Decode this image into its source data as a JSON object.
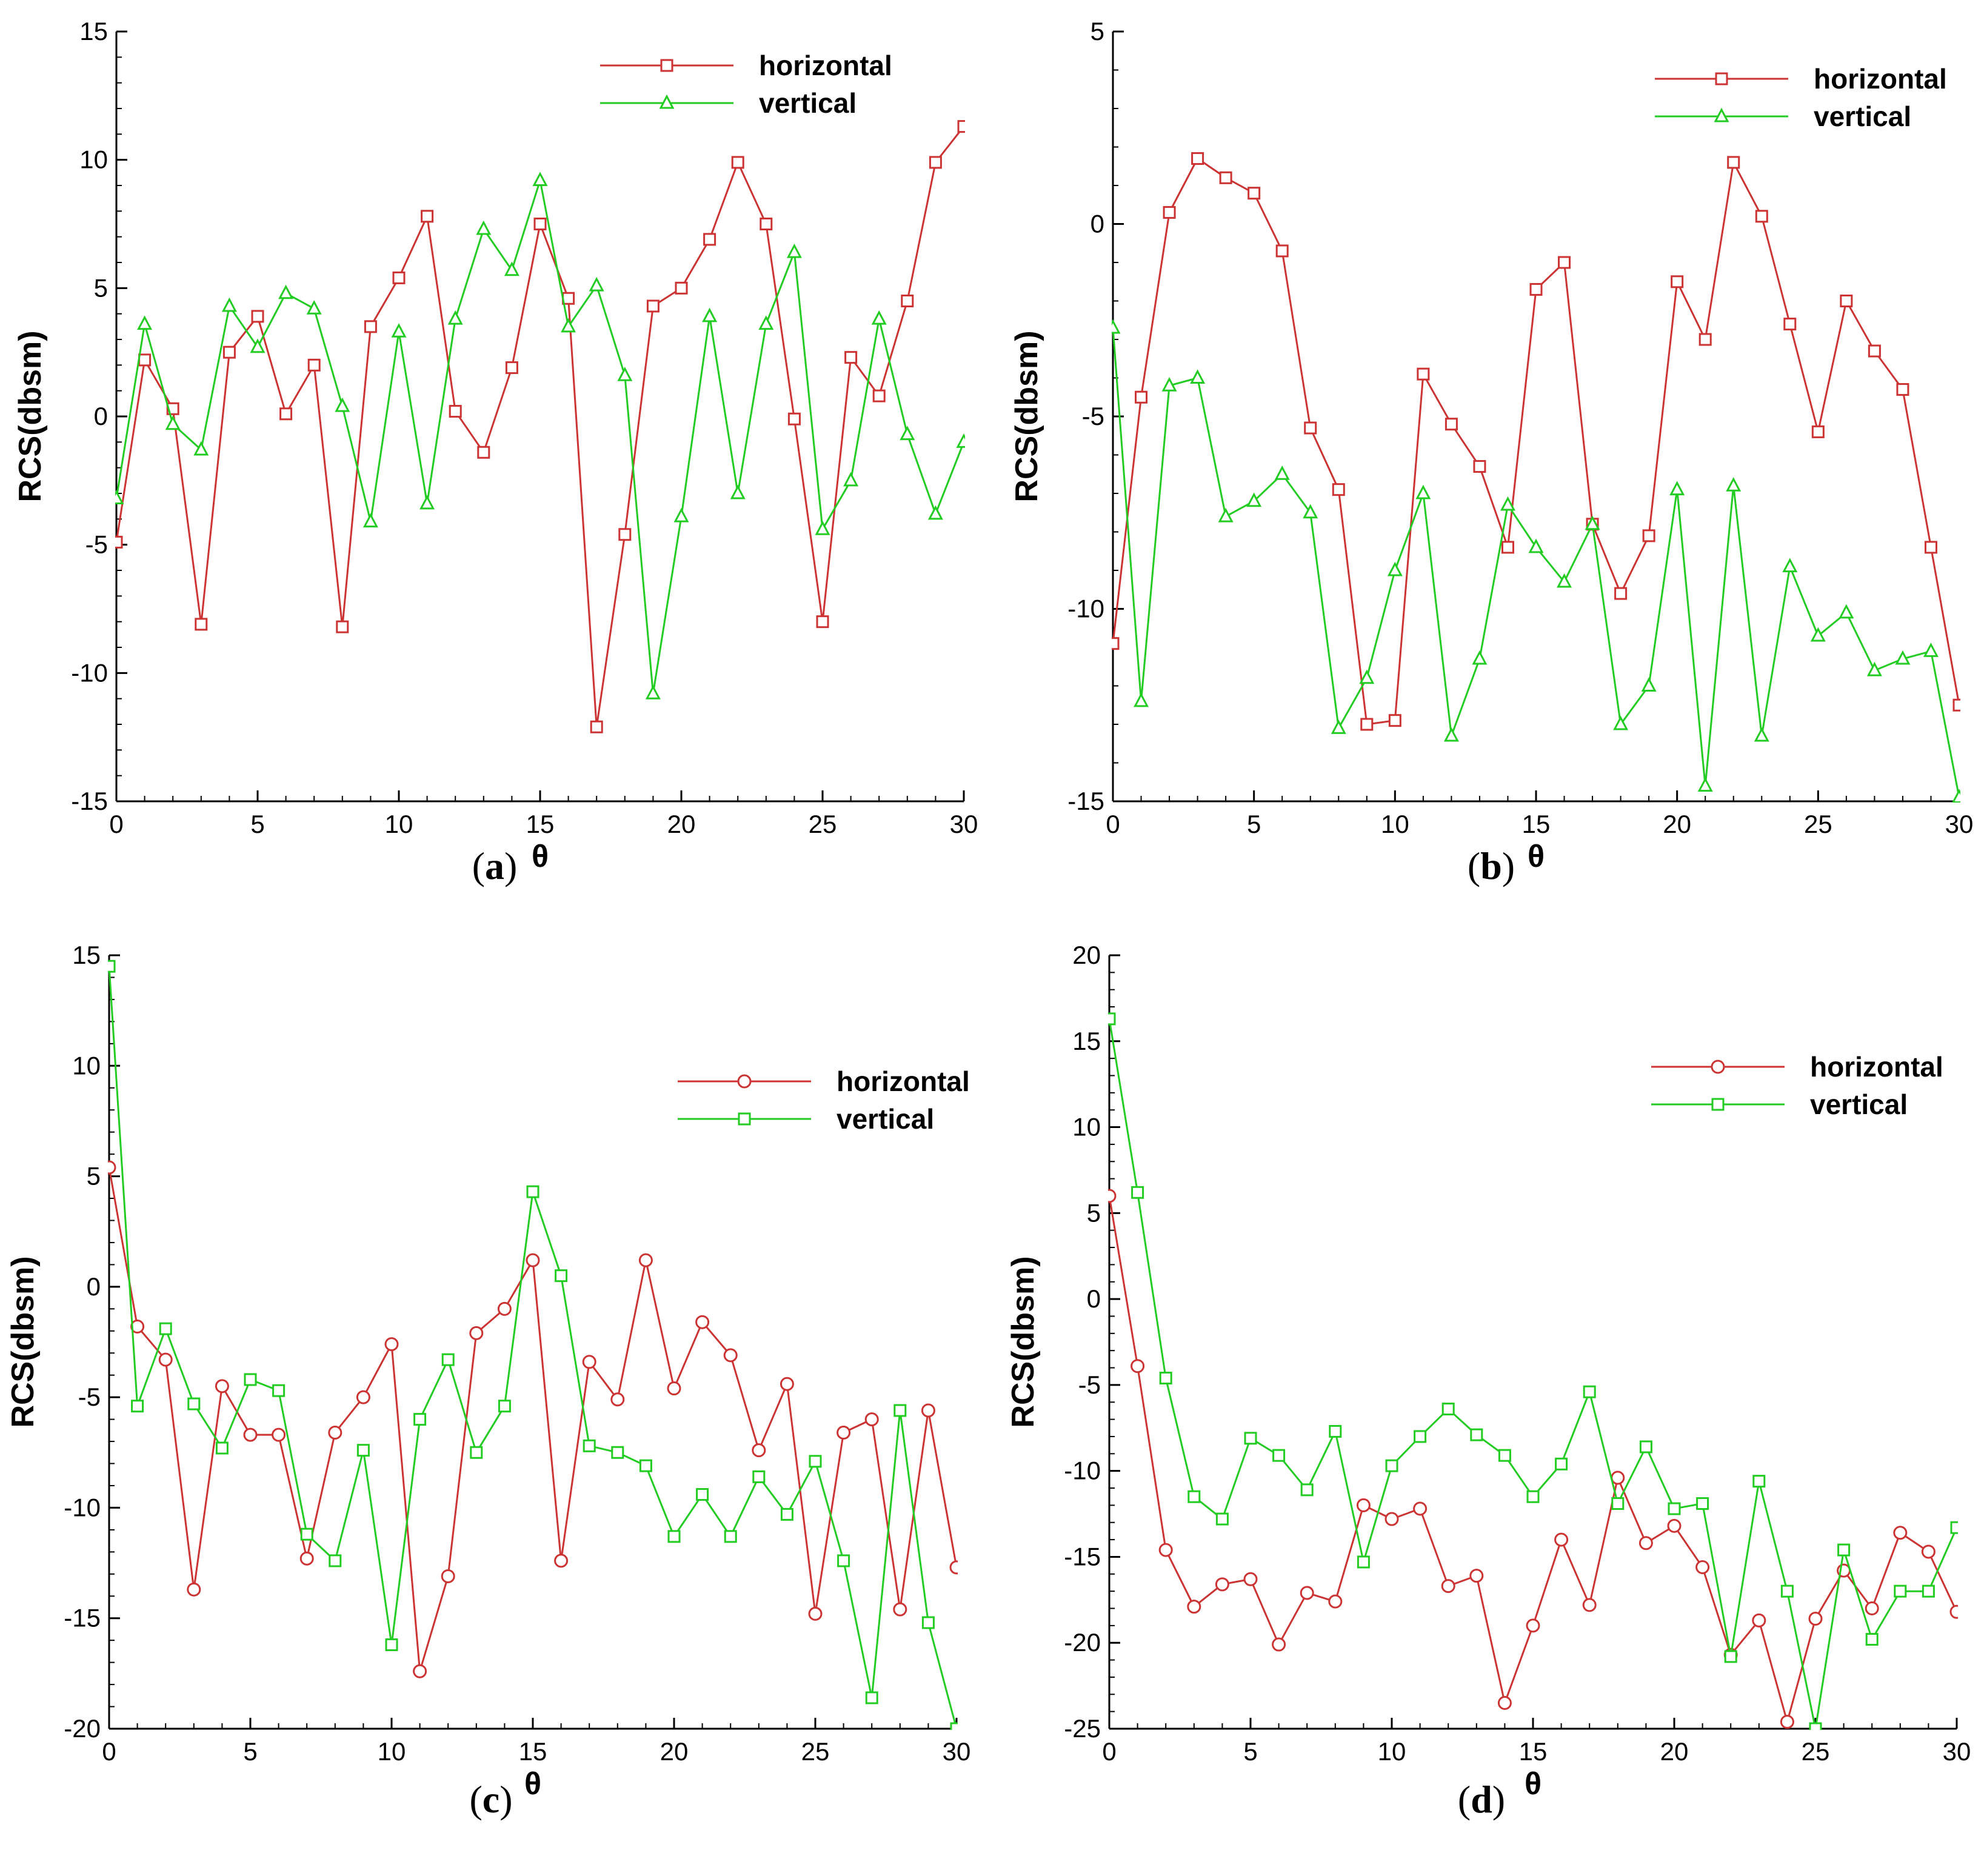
{
  "colors": {
    "horizontal": "#cc3333",
    "vertical": "#22cc22",
    "axis": "#000000"
  },
  "chart_data": [
    {
      "type": "line",
      "panel_label": "a",
      "xlabel": "θ",
      "ylabel": "RCS(dbsm)",
      "xlim": [
        0,
        30
      ],
      "ylim": [
        -15,
        15
      ],
      "xticks": [
        0,
        5,
        10,
        15,
        20,
        25,
        30
      ],
      "yticks": [
        -15,
        -10,
        -5,
        0,
        5,
        10,
        15
      ],
      "legend_position": "top-right",
      "x": [
        0,
        1,
        2,
        3,
        4,
        5,
        6,
        7,
        8,
        9,
        10,
        11,
        12,
        13,
        14,
        15,
        16,
        17,
        18,
        19,
        20,
        21,
        22,
        23,
        24,
        25,
        26,
        27,
        28,
        29,
        30
      ],
      "series": [
        {
          "name": "horizontal",
          "marker": "square",
          "color": "#cc3333",
          "values": [
            -4.9,
            2.2,
            0.3,
            -8.1,
            2.5,
            3.9,
            0.1,
            2.0,
            -8.2,
            3.5,
            5.4,
            7.8,
            0.2,
            -1.4,
            1.9,
            7.5,
            4.6,
            -12.1,
            -4.6,
            4.3,
            5.0,
            6.9,
            9.9,
            7.5,
            -0.1,
            -8.0,
            2.3,
            0.8,
            4.5,
            9.9,
            11.3
          ]
        },
        {
          "name": "vertical",
          "marker": "triangle",
          "color": "#22cc22",
          "values": [
            -3.2,
            3.6,
            -0.3,
            -1.3,
            4.3,
            2.7,
            4.8,
            4.2,
            0.4,
            -4.1,
            3.3,
            -3.4,
            3.8,
            7.3,
            5.7,
            9.2,
            3.5,
            5.1,
            1.6,
            -10.8,
            -3.9,
            3.9,
            -3.0,
            3.6,
            6.4,
            -4.4,
            -2.5,
            3.8,
            -0.7,
            -3.8,
            -1.0
          ]
        }
      ]
    },
    {
      "type": "line",
      "panel_label": "b",
      "xlabel": "θ",
      "ylabel": "RCS(dbsm)",
      "xlim": [
        0,
        30
      ],
      "ylim": [
        -15,
        5
      ],
      "xticks": [
        0,
        5,
        10,
        15,
        20,
        25,
        30
      ],
      "yticks": [
        -15,
        -10,
        -5,
        0,
        5
      ],
      "legend_position": "top-right",
      "x": [
        0,
        1,
        2,
        3,
        4,
        5,
        6,
        7,
        8,
        9,
        10,
        11,
        12,
        13,
        14,
        15,
        16,
        17,
        18,
        19,
        20,
        21,
        22,
        23,
        24,
        25,
        26,
        27,
        28,
        29,
        30
      ],
      "series": [
        {
          "name": "horizontal",
          "marker": "square",
          "color": "#cc3333",
          "values": [
            -10.9,
            -4.5,
            0.3,
            1.7,
            1.2,
            0.8,
            -0.7,
            -5.3,
            -6.9,
            -13.0,
            -12.9,
            -3.9,
            -5.2,
            -6.3,
            -8.4,
            -1.7,
            -1.0,
            -7.8,
            -9.6,
            -8.1,
            -1.5,
            -3.0,
            1.6,
            0.2,
            -2.6,
            -5.4,
            -2.0,
            -3.3,
            -4.3,
            -8.4,
            -12.5
          ]
        },
        {
          "name": "vertical",
          "marker": "triangle",
          "color": "#22cc22",
          "values": [
            -2.7,
            -12.4,
            -4.2,
            -4.0,
            -7.6,
            -7.2,
            -6.5,
            -7.5,
            -13.1,
            -11.8,
            -9.0,
            -7.0,
            -13.3,
            -11.3,
            -7.3,
            -8.4,
            -9.3,
            -7.8,
            -13.0,
            -12.0,
            -6.9,
            -14.6,
            -6.8,
            -13.3,
            -8.9,
            -10.7,
            -10.1,
            -11.6,
            -11.3,
            -11.1,
            -14.9
          ]
        }
      ]
    },
    {
      "type": "line",
      "panel_label": "c",
      "xlabel": "θ",
      "ylabel": "RCS(dbsm)",
      "xlim": [
        0,
        30
      ],
      "ylim": [
        -20,
        15
      ],
      "xticks": [
        0,
        5,
        10,
        15,
        20,
        25,
        30
      ],
      "yticks": [
        -20,
        -15,
        -10,
        -5,
        0,
        5,
        10,
        15
      ],
      "legend_position": "top-right",
      "x": [
        0,
        1,
        2,
        3,
        4,
        5,
        6,
        7,
        8,
        9,
        10,
        11,
        12,
        13,
        14,
        15,
        16,
        17,
        18,
        19,
        20,
        21,
        22,
        23,
        24,
        25,
        26,
        27,
        28,
        29,
        30
      ],
      "series": [
        {
          "name": "horizontal",
          "marker": "circle",
          "color": "#cc3333",
          "values": [
            5.4,
            -1.8,
            -3.3,
            -13.7,
            -4.5,
            -6.7,
            -6.7,
            -12.3,
            -6.6,
            -5.0,
            -2.6,
            -17.4,
            -13.1,
            -2.1,
            -1.0,
            1.2,
            -12.4,
            -3.4,
            -5.1,
            1.2,
            -4.6,
            -1.6,
            -3.1,
            -7.4,
            -4.4,
            -14.8,
            -6.6,
            -6.0,
            -14.6,
            -5.6,
            -12.7
          ]
        },
        {
          "name": "vertical",
          "marker": "square",
          "color": "#22cc22",
          "values": [
            14.5,
            -5.4,
            -1.9,
            -5.3,
            -7.3,
            -4.2,
            -4.7,
            -11.2,
            -12.4,
            -7.4,
            -16.2,
            -6.0,
            -3.3,
            -7.5,
            -5.4,
            4.3,
            0.5,
            -7.2,
            -7.5,
            -8.1,
            -11.3,
            -9.4,
            -11.3,
            -8.6,
            -10.3,
            -7.9,
            -12.4,
            -18.6,
            -5.6,
            -15.2,
            -20.0
          ]
        }
      ]
    },
    {
      "type": "line",
      "panel_label": "d",
      "xlabel": "θ",
      "ylabel": "RCS(dbsm)",
      "xlim": [
        0,
        30
      ],
      "ylim": [
        -25,
        20
      ],
      "xticks": [
        0,
        5,
        10,
        15,
        20,
        25,
        30
      ],
      "yticks": [
        -25,
        -20,
        -15,
        -10,
        -5,
        0,
        5,
        10,
        15,
        20
      ],
      "legend_position": "top-right",
      "x": [
        0,
        1,
        2,
        3,
        4,
        5,
        6,
        7,
        8,
        9,
        10,
        11,
        12,
        13,
        14,
        15,
        16,
        17,
        18,
        19,
        20,
        21,
        22,
        23,
        24,
        25,
        26,
        27,
        28,
        29,
        30
      ],
      "series": [
        {
          "name": "horizontal",
          "marker": "circle",
          "color": "#cc3333",
          "values": [
            6.0,
            -3.9,
            -14.6,
            -17.9,
            -16.6,
            -16.3,
            -20.1,
            -17.1,
            -17.6,
            -12.0,
            -12.8,
            -12.2,
            -16.7,
            -16.1,
            -23.5,
            -19.0,
            -14.0,
            -17.8,
            -10.4,
            -14.2,
            -13.2,
            -15.6,
            -20.7,
            -18.7,
            -24.6,
            -18.6,
            -15.8,
            -18.0,
            -13.6,
            -14.7,
            -18.2
          ]
        },
        {
          "name": "vertical",
          "marker": "square",
          "color": "#22cc22",
          "values": [
            16.3,
            6.2,
            -4.6,
            -11.5,
            -12.8,
            -8.1,
            -9.1,
            -11.1,
            -7.7,
            -15.3,
            -9.7,
            -8.0,
            -6.4,
            -7.9,
            -9.1,
            -11.5,
            -9.6,
            -5.4,
            -11.9,
            -8.6,
            -12.2,
            -11.9,
            -20.8,
            -10.6,
            -17.0,
            -25.0,
            -14.6,
            -19.8,
            -17.0,
            -17.0,
            -13.3
          ]
        }
      ]
    }
  ]
}
